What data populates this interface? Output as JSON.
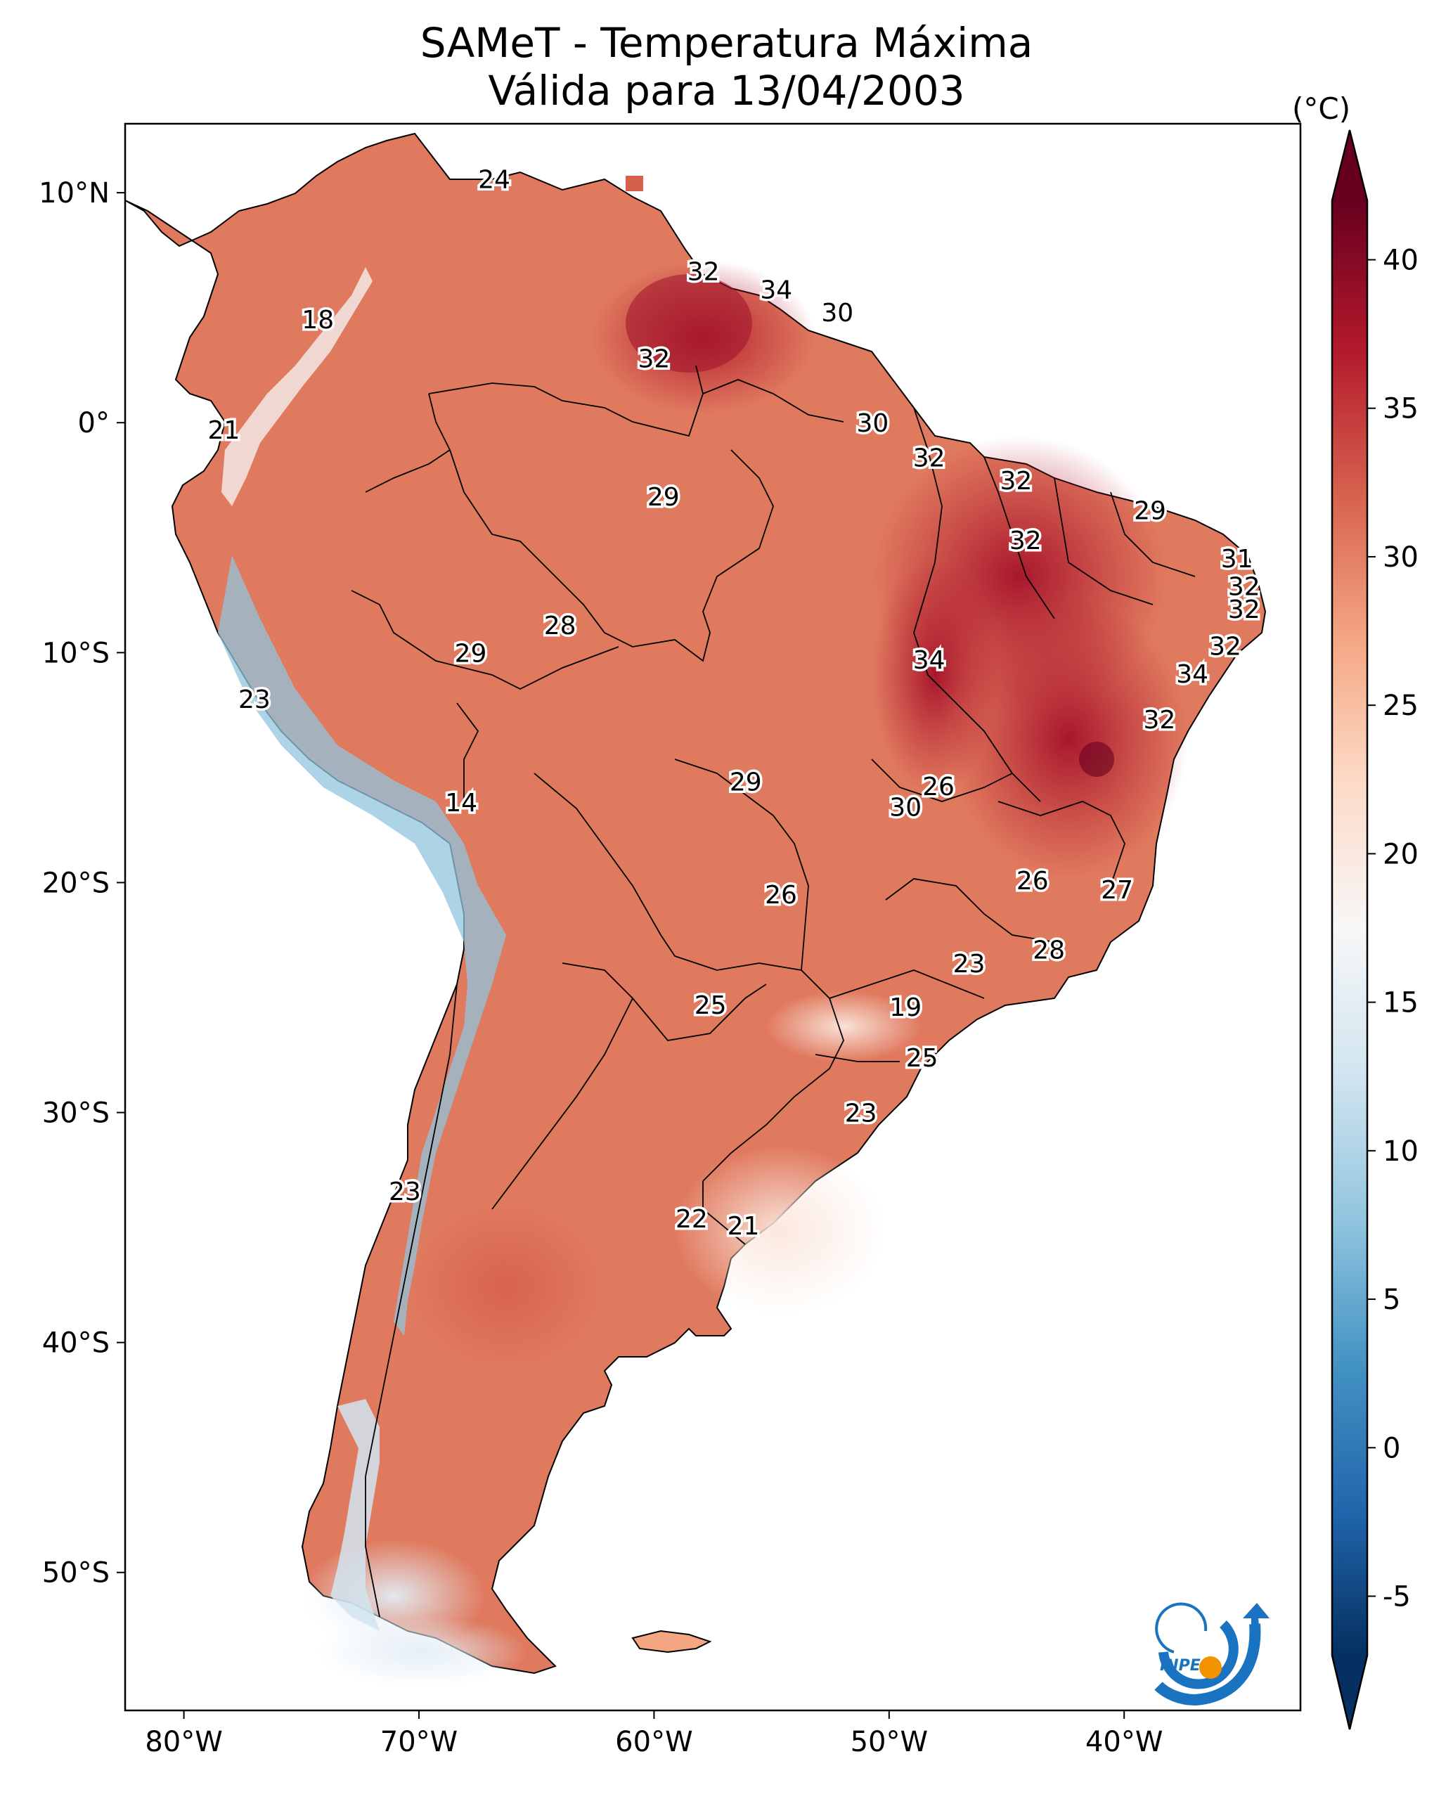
{
  "title": {
    "line1": "SAMeT - Temperatura Máxima",
    "line2": "Válida para 13/04/2003"
  },
  "map": {
    "lon_range": [
      -82.5,
      -32.5
    ],
    "lat_range": [
      -56.0,
      13.0
    ],
    "x_ticks": [
      {
        "lon": -80,
        "label": "80°W"
      },
      {
        "lon": -70,
        "label": "70°W"
      },
      {
        "lon": -60,
        "label": "60°W"
      },
      {
        "lon": -50,
        "label": "50°W"
      },
      {
        "lon": -40,
        "label": "40°W"
      }
    ],
    "y_ticks": [
      {
        "lat": 10,
        "label": "10°N"
      },
      {
        "lat": 0,
        "label": "0°"
      },
      {
        "lat": -10,
        "label": "10°S"
      },
      {
        "lat": -20,
        "label": "20°S"
      },
      {
        "lat": -30,
        "label": "30°S"
      },
      {
        "lat": -40,
        "label": "40°S"
      },
      {
        "lat": -50,
        "label": "50°S"
      }
    ],
    "station_values": [
      {
        "lon": -66.8,
        "lat": 10.6,
        "value": "24"
      },
      {
        "lon": -74.3,
        "lat": 4.5,
        "value": "18"
      },
      {
        "lon": -57.9,
        "lat": 6.6,
        "value": "32"
      },
      {
        "lon": -54.8,
        "lat": 5.8,
        "value": "34"
      },
      {
        "lon": -52.2,
        "lat": 4.8,
        "value": "30"
      },
      {
        "lon": -60.0,
        "lat": 2.8,
        "value": "32"
      },
      {
        "lon": -78.3,
        "lat": -0.3,
        "value": "21"
      },
      {
        "lon": -50.7,
        "lat": 0.0,
        "value": "30"
      },
      {
        "lon": -48.3,
        "lat": -1.5,
        "value": "32"
      },
      {
        "lon": -44.6,
        "lat": -2.5,
        "value": "32"
      },
      {
        "lon": -38.9,
        "lat": -3.8,
        "value": "29"
      },
      {
        "lon": -59.6,
        "lat": -3.2,
        "value": "29"
      },
      {
        "lon": -44.2,
        "lat": -5.1,
        "value": "32"
      },
      {
        "lon": -35.2,
        "lat": -5.9,
        "value": "31"
      },
      {
        "lon": -34.9,
        "lat": -7.1,
        "value": "32"
      },
      {
        "lon": -34.9,
        "lat": -8.1,
        "value": "32"
      },
      {
        "lon": -64.0,
        "lat": -8.8,
        "value": "28"
      },
      {
        "lon": -67.8,
        "lat": -10.0,
        "value": "29"
      },
      {
        "lon": -48.3,
        "lat": -10.3,
        "value": "34"
      },
      {
        "lon": -35.7,
        "lat": -9.7,
        "value": "32"
      },
      {
        "lon": -37.1,
        "lat": -10.9,
        "value": "34"
      },
      {
        "lon": -77.0,
        "lat": -12.0,
        "value": "23"
      },
      {
        "lon": -38.5,
        "lat": -12.9,
        "value": "32"
      },
      {
        "lon": -56.1,
        "lat": -15.6,
        "value": "29"
      },
      {
        "lon": -47.9,
        "lat": -15.8,
        "value": "26"
      },
      {
        "lon": -49.3,
        "lat": -16.7,
        "value": "30"
      },
      {
        "lon": -68.2,
        "lat": -16.5,
        "value": "14"
      },
      {
        "lon": -54.6,
        "lat": -20.5,
        "value": "26"
      },
      {
        "lon": -43.9,
        "lat": -19.9,
        "value": "26"
      },
      {
        "lon": -40.3,
        "lat": -20.3,
        "value": "27"
      },
      {
        "lon": -43.2,
        "lat": -22.9,
        "value": "28"
      },
      {
        "lon": -46.6,
        "lat": -23.5,
        "value": "23"
      },
      {
        "lon": -57.6,
        "lat": -25.3,
        "value": "25"
      },
      {
        "lon": -49.3,
        "lat": -25.4,
        "value": "19"
      },
      {
        "lon": -48.6,
        "lat": -27.6,
        "value": "25"
      },
      {
        "lon": -51.2,
        "lat": -30.0,
        "value": "23"
      },
      {
        "lon": -70.6,
        "lat": -33.4,
        "value": "23"
      },
      {
        "lon": -58.4,
        "lat": -34.6,
        "value": "22"
      },
      {
        "lon": -56.2,
        "lat": -34.9,
        "value": "21"
      }
    ]
  },
  "colorbar": {
    "unit": "(°C)",
    "min": -7,
    "max": 42,
    "tick_values": [
      -5,
      0,
      5,
      10,
      15,
      20,
      25,
      30,
      35,
      40
    ],
    "tick_labels": [
      "-5",
      "0",
      "5",
      "10",
      "15",
      "20",
      "25",
      "30",
      "35",
      "40"
    ],
    "colors": [
      "#053061",
      "#2166ac",
      "#4393c3",
      "#92c5de",
      "#d1e5f0",
      "#f7f7f7",
      "#fddbc7",
      "#f4a582",
      "#d6604d",
      "#b2182b",
      "#67001f"
    ]
  },
  "logo": {
    "text": "INPE",
    "colors": {
      "arc": "#1a73c0",
      "dot": "#f39200"
    }
  }
}
